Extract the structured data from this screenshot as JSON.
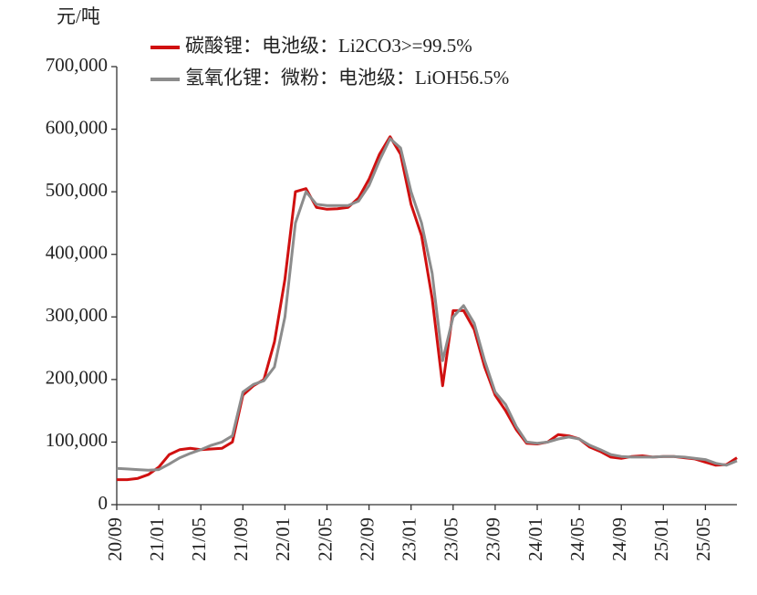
{
  "chart_data": {
    "type": "line",
    "y_label": "元/吨",
    "categories": [
      "20/09",
      null,
      null,
      null,
      "21/01",
      null,
      null,
      null,
      "21/05",
      null,
      null,
      null,
      "21/09",
      null,
      null,
      null,
      "22/01",
      null,
      null,
      null,
      "22/05",
      null,
      null,
      null,
      "22/09",
      null,
      null,
      null,
      "23/01",
      null,
      null,
      null,
      "23/05",
      null,
      null,
      null,
      "23/09",
      null,
      null,
      null,
      "24/01",
      null,
      null,
      null,
      "24/05",
      null,
      null,
      null,
      "24/09",
      null,
      null,
      null,
      "25/01",
      null,
      null,
      null,
      "25/05",
      null,
      null,
      null
    ],
    "series": [
      {
        "name": "碳酸锂：电池级：Li2CO3>=99.5%",
        "color": "#d01010",
        "values": [
          40000,
          40000,
          42000,
          48000,
          60000,
          80000,
          88000,
          90000,
          88000,
          89000,
          90000,
          100000,
          175000,
          190000,
          200000,
          260000,
          360000,
          500000,
          505000,
          475000,
          472000,
          473000,
          475000,
          490000,
          520000,
          560000,
          588000,
          560000,
          480000,
          430000,
          330000,
          190000,
          310000,
          310000,
          280000,
          220000,
          175000,
          150000,
          120000,
          98000,
          97000,
          100000,
          112000,
          110000,
          105000,
          92000,
          85000,
          76000,
          74000,
          77000,
          78000,
          76000,
          77000,
          77000,
          75000,
          73000,
          68000,
          63000,
          64000,
          75000
        ]
      },
      {
        "name": "氢氧化锂：微粉：电池级：LiOH56.5%",
        "color": "#8c8c8c",
        "values": [
          58000,
          57000,
          56000,
          55000,
          56000,
          65000,
          75000,
          82000,
          88000,
          95000,
          100000,
          110000,
          180000,
          192000,
          198000,
          220000,
          300000,
          450000,
          500000,
          480000,
          478000,
          478000,
          478000,
          485000,
          510000,
          550000,
          585000,
          570000,
          500000,
          450000,
          370000,
          230000,
          300000,
          318000,
          290000,
          230000,
          180000,
          160000,
          125000,
          100000,
          98000,
          100000,
          105000,
          108000,
          105000,
          95000,
          88000,
          80000,
          77000,
          76000,
          76000,
          76000,
          77000,
          77000,
          76000,
          74000,
          72000,
          66000,
          63000,
          70000
        ]
      }
    ],
    "ylim": [
      0,
      700000
    ],
    "yticks": [
      0,
      {
        "value": 100000,
        "label": "100,000"
      },
      {
        "value": 200000,
        "label": "200,000"
      },
      {
        "value": 300000,
        "label": "300,000"
      },
      {
        "value": 400000,
        "label": "400,000"
      },
      {
        "value": 500000,
        "label": "500,000"
      },
      {
        "value": 600000,
        "label": "600,000"
      },
      {
        "value": 700000,
        "label": "700,000"
      }
    ],
    "legend": "top-left",
    "grid": false
  }
}
